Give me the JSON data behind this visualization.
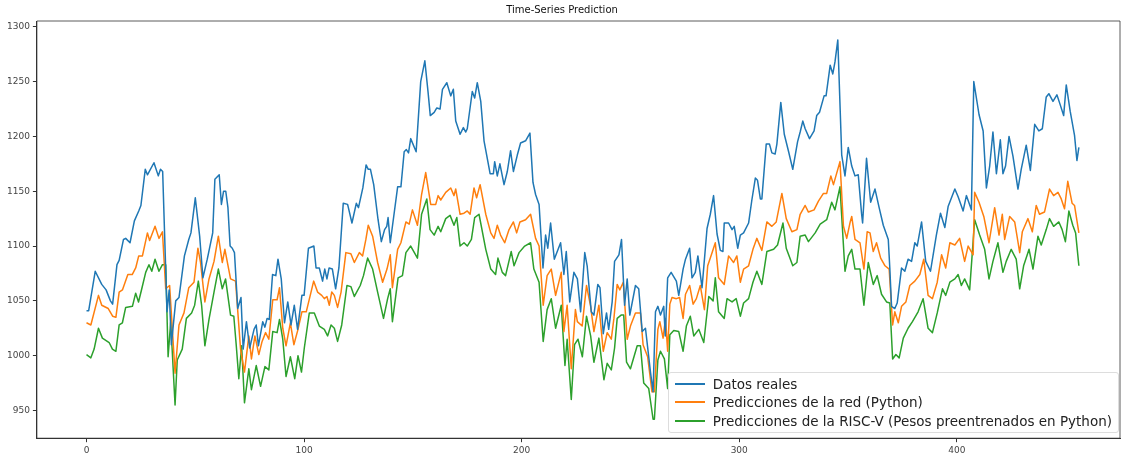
{
  "chart_data": {
    "type": "line",
    "title": "Time-Series Prediction",
    "xlim": [
      -22.8,
      475
    ],
    "ylim": [
      924.7,
      1305.3
    ],
    "xticks": [
      0,
      100,
      200,
      300,
      400
    ],
    "yticks": [
      950,
      1000,
      1050,
      1100,
      1150,
      1200,
      1250,
      1300
    ],
    "grid": false,
    "legend": "bottom right",
    "marker": "none",
    "line_style": "solid",
    "series": [
      {
        "name": "Datos reales",
        "color": "#1f77b4",
        "x": [
          0,
          1,
          4,
          7,
          9,
          11,
          12,
          14,
          15,
          17,
          18,
          20,
          22,
          24,
          25,
          27,
          28,
          31,
          33,
          34,
          35,
          37,
          38,
          39,
          41,
          42.5,
          45,
          47,
          48,
          50,
          52,
          53.5,
          55.5,
          58,
          59,
          61,
          62,
          63,
          64,
          65,
          66,
          67,
          68,
          69.5,
          71,
          72,
          73.5,
          75,
          77,
          78,
          79,
          81,
          82,
          83,
          84,
          85.5,
          87,
          88,
          89.5,
          91,
          92.5,
          94,
          95.5,
          97,
          99,
          100,
          102,
          104.5,
          105.5,
          107,
          108.5,
          109.5,
          110.5,
          111.5,
          113,
          114.5,
          116,
          118,
          120,
          122,
          124,
          125,
          127,
          128.5,
          129.5,
          130.5,
          132,
          134,
          135.5,
          137,
          138,
          138.6,
          139.6,
          143,
          144.5,
          146,
          147,
          148,
          149,
          151.5,
          153.6,
          155.5,
          157,
          158,
          159.8,
          161,
          162.5,
          163.6,
          165.6,
          167.4,
          168.6,
          169.7,
          171.7,
          173.2,
          174.3,
          175,
          177.3,
          178.4,
          179.6,
          181.2,
          182.7,
          185.5,
          187,
          187.6,
          188.8,
          190,
          191.9,
          193.4,
          194.9,
          196.2,
          198,
          199.5,
          201.8,
          203.8,
          205.2,
          206.4,
          208,
          209.8,
          211,
          212,
          213.3,
          215,
          217.9,
          219.4,
          220.5,
          222.1,
          224,
          225.6,
          227.1,
          229,
          230.1,
          232,
          233.2,
          235,
          236,
          237.5,
          239,
          240,
          241.6,
          242.7,
          244.7,
          245.9,
          247.3,
          248.5,
          249.7,
          252.3,
          253.8,
          255.4,
          256.9,
          259.2,
          260.4,
          261.5,
          262.6,
          263.8,
          265.3,
          266,
          267.1,
          268.7,
          271.1,
          272.2,
          274.2,
          275.3,
          277.2,
          278.3,
          279.8,
          281,
          282.9,
          285.2,
          286.7,
          288.2,
          289.8,
          291.3,
          292.5,
          293.1,
          295.1,
          296.7,
          297.7,
          299.3,
          300.5,
          302,
          304.3,
          305.8,
          307.4,
          308.4,
          309.7,
          310.4,
          312.4,
          313.9,
          315,
          316.5,
          317.3,
          319.1,
          320.7,
          322.7,
          324.6,
          326.8,
          328,
          329.2,
          330.3,
          332.3,
          334.4,
          335.6,
          336.9,
          339,
          339.9,
          341.8,
          343,
          344,
          345.3,
          347.1,
          348.6,
          350.1,
          351.7,
          353.2,
          354.7,
          356.2,
          356.7,
          358.5,
          360.4,
          362.4,
          364.3,
          366.2,
          368.5,
          369.2,
          370,
          371.5,
          372.6,
          374.6,
          376.1,
          377.6,
          379.2,
          380.7,
          381.8,
          383.8,
          385.7,
          387.9,
          390.6,
          392.5,
          394.5,
          396,
          399.1,
          400.6,
          402.9,
          404.4,
          406.7,
          407.8,
          410.2,
          412.1,
          413.6,
          415.1,
          416.6,
          418.2,
          420,
          421.2,
          422.4,
          424,
          425.8,
          428.1,
          429.6,
          431.9,
          433.8,
          435.8,
          437.7,
          439.3,
          441.1,
          442.3,
          444.2,
          446,
          447.5,
          449.1,
          450.3,
          452.1,
          454.1,
          455.2,
          456.1
        ],
        "values": [
          1041,
          1041,
          1077,
          1065,
          1060,
          1050,
          1047,
          1083,
          1087,
          1106,
          1107,
          1103,
          1123,
          1132,
          1137,
          1170,
          1165,
          1176,
          1164,
          1170,
          1168,
          1040,
          1060,
          1010,
          1050,
          1053,
          1091,
          1106,
          1112,
          1144,
          1109,
          1071,
          1088,
          1112,
          1161,
          1165,
          1138,
          1150,
          1150,
          1135,
          1100,
          1098,
          1094,
          1043,
          1053,
          1006,
          1031,
          1007,
          1024,
          1028,
          1009,
          1031,
          1026,
          1034,
          1033,
          1074,
          1073,
          1088,
          1070,
          1030,
          1049,
          1028,
          1046,
          1024,
          1055,
          1055,
          1098,
          1100,
          1080,
          1080,
          1068,
          1079,
          1070,
          1080,
          1079,
          1061,
          1080,
          1139,
          1138,
          1121,
          1139,
          1135,
          1153,
          1174,
          1170,
          1170,
          1156,
          1124,
          1104,
          1115,
          1118,
          1126,
          1103,
          1154,
          1154,
          1186,
          1188,
          1185,
          1198,
          1186,
          1250,
          1269,
          1240,
          1219,
          1222,
          1226,
          1225,
          1243,
          1249,
          1237,
          1243,
          1214,
          1202,
          1208,
          1204,
          1207,
          1241,
          1235,
          1249,
          1232,
          1196,
          1166,
          1166,
          1177,
          1164,
          1175,
          1156,
          1168,
          1187,
          1168,
          1183,
          1194,
          1196,
          1203,
          1158,
          1147,
          1138,
          1080,
          1110,
          1098,
          1121,
          1088,
          1103,
          1074,
          1095,
          1049,
          1076,
          1070,
          1040,
          1094,
          1082,
          1040,
          1037,
          1065,
          1062,
          1020,
          1039,
          1024,
          1049,
          1086,
          1092,
          1106,
          1046,
          1070,
          1037,
          1064,
          1061,
          1022,
          1025,
          985,
          967,
          1040,
          1045,
          1037,
          1045,
          1018,
          1071,
          1076,
          1068,
          1055,
          1079,
          1088,
          1098,
          1071,
          1076,
          1091,
          1062,
          1116,
          1129,
          1146,
          1111,
          1096,
          1095,
          1121,
          1121,
          1115,
          1118,
          1098,
          1110,
          1112,
          1121,
          1142,
          1162,
          1160,
          1143,
          1143,
          1193,
          1193,
          1185,
          1184,
          1193,
          1231,
          1202,
          1186,
          1170,
          1195,
          1204,
          1214,
          1207,
          1198,
          1205,
          1219,
          1222,
          1237,
          1237,
          1265,
          1257,
          1268,
          1288,
          1183,
          1164,
          1190,
          1173,
          1164,
          1165,
          1130,
          1121,
          1180,
          1140,
          1152,
          1135,
          1119,
          1106,
          1080,
          1045,
          1043,
          1048,
          1080,
          1077,
          1088,
          1086,
          1103,
          1100,
          1122,
          1086,
          1077,
          1110,
          1130,
          1117,
          1136,
          1152,
          1145,
          1132,
          1146,
          1133,
          1250,
          1220,
          1205,
          1153,
          1173,
          1204,
          1166,
          1197,
          1166,
          1173,
          1200,
          1182,
          1152,
          1170,
          1192,
          1169,
          1211,
          1205,
          1207,
          1236,
          1239,
          1232,
          1238,
          1229,
          1219,
          1247,
          1223,
          1201,
          1178,
          1190
        ]
      },
      {
        "name": "Predicciones de la red (Python)",
        "color": "#ff7f0e",
        "x": [
          0,
          2,
          5.5,
          7,
          10,
          12,
          13.5,
          15,
          16.5,
          19,
          21,
          22.6,
          24,
          25.7,
          28,
          29,
          31.5,
          33.3,
          34.9,
          36.4,
          38.2,
          40.7,
          42.5,
          44.8,
          47,
          49.4,
          51.2,
          52.4,
          54.4,
          56.3,
          58.6,
          60.6,
          62.4,
          63.6,
          66.2,
          68.5,
          70.8,
          72.6,
          74.6,
          75.8,
          77.4,
          79.2,
          80.7,
          82.3,
          83.8,
          85.6,
          87.6,
          88.7,
          90.2,
          91.7,
          93.7,
          95.3,
          97.2,
          99,
          101,
          104.4,
          106.2,
          108.1,
          109.3,
          110.5,
          111.6,
          112.7,
          113.9,
          115.4,
          117,
          119.2,
          121.5,
          123.1,
          125.4,
          126.9,
          128.4,
          129.5,
          131.5,
          133.8,
          136.1,
          138.1,
          139.6,
          140.6,
          143,
          144.5,
          146.8,
          148.3,
          149.8,
          152.1,
          154,
          155.9,
          158.2,
          160.5,
          161.6,
          162.8,
          165.1,
          167.4,
          168.9,
          169.7,
          171.7,
          173.5,
          175,
          176.3,
          178.1,
          179.3,
          180.9,
          183.5,
          185.8,
          187.3,
          188.8,
          190.3,
          192.2,
          194.2,
          196.2,
          197.7,
          199.2,
          201.8,
          204.1,
          206.4,
          208,
          209.9,
          211.7,
          213.6,
          215.6,
          218.2,
          219.4,
          220.9,
          222.8,
          224.7,
          225.6,
          227.8,
          229.8,
          231.7,
          233.2,
          235.5,
          237.5,
          239.3,
          241.2,
          242.4,
          243.9,
          245.1,
          246.7,
          248.5,
          250,
          252.3,
          254.6,
          255.8,
          257.9,
          259.9,
          261,
          262.6,
          263.5,
          265,
          266.1,
          267.1,
          268.1,
          269.1,
          271.1,
          272.6,
          274.2,
          275.3,
          277.2,
          278.8,
          280.3,
          282.1,
          284,
          285.5,
          286.7,
          289,
          290.5,
          293.1,
          295.1,
          297.4,
          298.9,
          300.5,
          302,
          304.3,
          306.3,
          308.1,
          310.4,
          312.7,
          315,
          317,
          319.6,
          321.6,
          324.2,
          326.5,
          328,
          330.3,
          331.8,
          334.4,
          336.4,
          338.7,
          340.2,
          342.1,
          343.3,
          346.3,
          347.9,
          349.4,
          351,
          351.7,
          353.2,
          355.5,
          357.3,
          358.8,
          360.1,
          361.6,
          363.1,
          365,
          367,
          368.9,
          370.5,
          371.5,
          373.1,
          374.6,
          376.6,
          378.4,
          380.7,
          383,
          384.8,
          386.8,
          388.8,
          391,
          393,
          394.9,
          396.8,
          399.1,
          401.3,
          403.6,
          405.2,
          407.5,
          408.2,
          410.2,
          412.4,
          414.8,
          417.4,
          419.4,
          420.9,
          422,
          424.3,
          426.6,
          428.9,
          430.1,
          432.7,
          434.7,
          436.5,
          438,
          440.3,
          442.6,
          444.5,
          446.5,
          448,
          449.5,
          451,
          453,
          454.1,
          456.1
        ],
        "values": [
          1030,
          1028,
          1055,
          1046,
          1043,
          1036,
          1035,
          1058,
          1060,
          1074,
          1074,
          1080,
          1091,
          1091,
          1112,
          1105,
          1118,
          1107,
          1113,
          1061,
          1064,
          984,
          1028,
          1039,
          1062,
          1067,
          1098,
          1085,
          1049,
          1070,
          1086,
          1109,
          1085,
          1097,
          1070,
          1068,
          1006,
          985,
          1018,
          997,
          1018,
          1001,
          1013,
          1021,
          1015,
          1051,
          1051,
          1062,
          1025,
          1009,
          1030,
          1010,
          1024,
          1040,
          1040,
          1068,
          1058,
          1055,
          1052,
          1054,
          1046,
          1058,
          1055,
          1044,
          1058,
          1094,
          1093,
          1085,
          1094,
          1091,
          1106,
          1119,
          1109,
          1085,
          1067,
          1079,
          1092,
          1062,
          1097,
          1103,
          1122,
          1120,
          1133,
          1119,
          1147,
          1167,
          1138,
          1138,
          1146,
          1142,
          1149,
          1153,
          1146,
          1152,
          1129,
          1130,
          1132,
          1129,
          1153,
          1144,
          1156,
          1129,
          1112,
          1107,
          1119,
          1110,
          1103,
          1115,
          1122,
          1112,
          1122,
          1124,
          1129,
          1107,
          1100,
          1046,
          1073,
          1079,
          1055,
          1076,
          1022,
          1046,
          988,
          1042,
          1031,
          1027,
          1064,
          1045,
          1022,
          1046,
          1004,
          1021,
          1015,
          1034,
          1065,
          1060,
          1067,
          1015,
          1027,
          1039,
          1039,
          1010,
          999,
          967,
          967,
          1024,
          1031,
          1016,
          1034,
          1004,
          1047,
          1053,
          1052,
          1053,
          1034,
          1056,
          1064,
          1047,
          1052,
          1064,
          1042,
          1082,
          1089,
          1103,
          1071,
          1065,
          1091,
          1085,
          1091,
          1067,
          1079,
          1082,
          1097,
          1107,
          1096,
          1122,
          1118,
          1122,
          1148,
          1125,
          1113,
          1115,
          1129,
          1137,
          1131,
          1133,
          1141,
          1148,
          1148,
          1164,
          1156,
          1177,
          1118,
          1107,
          1122,
          1127,
          1106,
          1103,
          1079,
          1113,
          1112,
          1095,
          1103,
          1089,
          1082,
          1079,
          1028,
          1040,
          1030,
          1045,
          1049,
          1064,
          1068,
          1074,
          1088,
          1055,
          1052,
          1067,
          1092,
          1080,
          1103,
          1101,
          1107,
          1086,
          1100,
          1092,
          1149,
          1140,
          1127,
          1103,
          1135,
          1110,
          1129,
          1106,
          1127,
          1122,
          1094,
          1113,
          1125,
          1113,
          1137,
          1129,
          1131,
          1152,
          1146,
          1149,
          1143,
          1134,
          1159,
          1139,
          1137,
          1112
        ]
      },
      {
        "name": "Predicciones de la RISC-V (Pesos preentrenados en Python)",
        "color": "#2ca02c",
        "x": [
          0,
          2,
          3.5,
          5.5,
          7.3,
          10.4,
          11.9,
          13.5,
          15,
          16.5,
          18,
          21.1,
          22.6,
          23.9,
          25.4,
          27.2,
          28.7,
          30,
          31.5,
          33.3,
          34.9,
          36.4,
          37.5,
          38.7,
          40.7,
          41.7,
          44,
          45.9,
          48.3,
          49.7,
          51.4,
          52.9,
          54.4,
          56.3,
          58.6,
          60.6,
          62.4,
          63.9,
          66.2,
          67.7,
          68.8,
          70,
          71.3,
          72.6,
          74.6,
          75.8,
          78,
          80,
          82,
          83.8,
          85.6,
          87.6,
          88.7,
          90.2,
          91.7,
          93.7,
          95.7,
          97.2,
          98.8,
          100.1,
          102.4,
          104.7,
          107,
          109.3,
          110.8,
          112.4,
          113.9,
          115.4,
          117.3,
          119.7,
          121.5,
          123.1,
          125.8,
          127.3,
          129.2,
          131.5,
          133.8,
          136.5,
          138.4,
          139.6,
          140.6,
          143.2,
          145.2,
          146.8,
          149,
          152.1,
          154,
          156.4,
          157.9,
          159.8,
          161.6,
          162.8,
          165.1,
          167.1,
          168.9,
          170.2,
          171.7,
          173.5,
          175,
          176.9,
          178.4,
          180.4,
          183.5,
          185.8,
          188,
          189.1,
          191.1,
          192.6,
          195.2,
          196.5,
          198.8,
          201.4,
          204.1,
          205.6,
          208,
          209.9,
          211.7,
          213.6,
          215.6,
          218.2,
          219.9,
          220.9,
          222.8,
          224.3,
          225.9,
          227.9,
          229.8,
          231.7,
          233.2,
          235.5,
          237.8,
          239.3,
          241.2,
          242.7,
          243.9,
          245.7,
          246.9,
          248.2,
          250,
          253.1,
          254.6,
          256.1,
          258.4,
          260.4,
          261,
          262.6,
          263.8,
          265.6,
          267.1,
          268.1,
          269.9,
          272.2,
          274.2,
          275.7,
          277.5,
          279.1,
          281.4,
          283.7,
          286,
          288,
          289,
          290.5,
          293.1,
          294.4,
          296.7,
          298.6,
          300.5,
          302,
          304.3,
          306.3,
          308.1,
          310.4,
          312.7,
          315.8,
          317.6,
          320.1,
          321.6,
          324.6,
          326.5,
          328,
          330.3,
          331.8,
          334.9,
          337.2,
          340.2,
          342.5,
          344,
          346.3,
          348.6,
          350.1,
          351.7,
          353.2,
          355.5,
          357.3,
          359.3,
          361.6,
          363.4,
          365.4,
          367.7,
          369.2,
          370.5,
          372,
          373.5,
          375.4,
          377.6,
          379.6,
          382.2,
          384.5,
          386.8,
          388.8,
          391,
          393.4,
          394.9,
          396.8,
          399.1,
          400.6,
          402.1,
          403.6,
          405.9,
          408.2,
          410.5,
          412.8,
          414.8,
          416.6,
          418.9,
          421.2,
          422.7,
          425,
          427.3,
          428.9,
          430.7,
          433.2,
          435,
          437.3,
          438.8,
          441.1,
          442.6,
          444.5,
          446.9,
          448.4,
          449.9,
          451.5,
          453.3,
          454.6,
          456.1
        ],
        "values": [
          1001,
          998,
          1006,
          1025,
          1016,
          1012,
          1006,
          1004,
          1028,
          1030,
          1044,
          1045,
          1057,
          1049,
          1061,
          1076,
          1083,
          1077,
          1088,
          1077,
          1083,
          1083,
          999,
          1031,
          955,
          996,
          1006,
          1034,
          1039,
          1046,
          1068,
          1046,
          1009,
          1033,
          1058,
          1079,
          1061,
          1070,
          1037,
          1036,
          1010,
          979,
          1009,
          957,
          988,
          969,
          991,
          972,
          990,
          987,
          1022,
          1021,
          1033,
          1015,
          981,
          999,
          979,
          1000,
          985,
          1007,
          1039,
          1039,
          1027,
          1024,
          1018,
          1028,
          1025,
          1013,
          1028,
          1064,
          1063,
          1054,
          1064,
          1073,
          1089,
          1079,
          1058,
          1034,
          1052,
          1061,
          1031,
          1071,
          1073,
          1094,
          1100,
          1089,
          1129,
          1143,
          1115,
          1110,
          1118,
          1113,
          1125,
          1128,
          1119,
          1126,
          1100,
          1103,
          1100,
          1106,
          1126,
          1129,
          1097,
          1079,
          1074,
          1089,
          1076,
          1073,
          1095,
          1082,
          1094,
          1100,
          1103,
          1079,
          1067,
          1013,
          1042,
          1052,
          1025,
          1046,
          991,
          1015,
          960,
          1010,
          1015,
          999,
          1036,
          1018,
          994,
          1016,
          978,
          993,
          987,
          1007,
          1034,
          1037,
          1037,
          994,
          988,
          1009,
          1009,
          975,
          970,
          942,
          942,
          996,
          1004,
          997,
          970,
          1019,
          1023,
          1022,
          1004,
          1027,
          1036,
          1018,
          1024,
          1012,
          1054,
          1050,
          1071,
          1040,
          1034,
          1052,
          1049,
          1052,
          1036,
          1048,
          1052,
          1067,
          1077,
          1065,
          1095,
          1097,
          1101,
          1121,
          1098,
          1082,
          1085,
          1109,
          1110,
          1104,
          1112,
          1120,
          1124,
          1140,
          1133,
          1154,
          1077,
          1091,
          1097,
          1079,
          1079,
          1046,
          1085,
          1065,
          1073,
          1056,
          1049,
          1048,
          997,
          1001,
          998,
          1016,
          1025,
          1031,
          1040,
          1052,
          1025,
          1021,
          1039,
          1061,
          1055,
          1067,
          1070,
          1074,
          1064,
          1070,
          1060,
          1124,
          1110,
          1097,
          1070,
          1086,
          1103,
          1076,
          1086,
          1097,
          1088,
          1061,
          1082,
          1097,
          1079,
          1109,
          1101,
          1115,
          1125,
          1118,
          1122,
          1115,
          1104,
          1132,
          1119,
          1112,
          1082
        ]
      }
    ]
  }
}
